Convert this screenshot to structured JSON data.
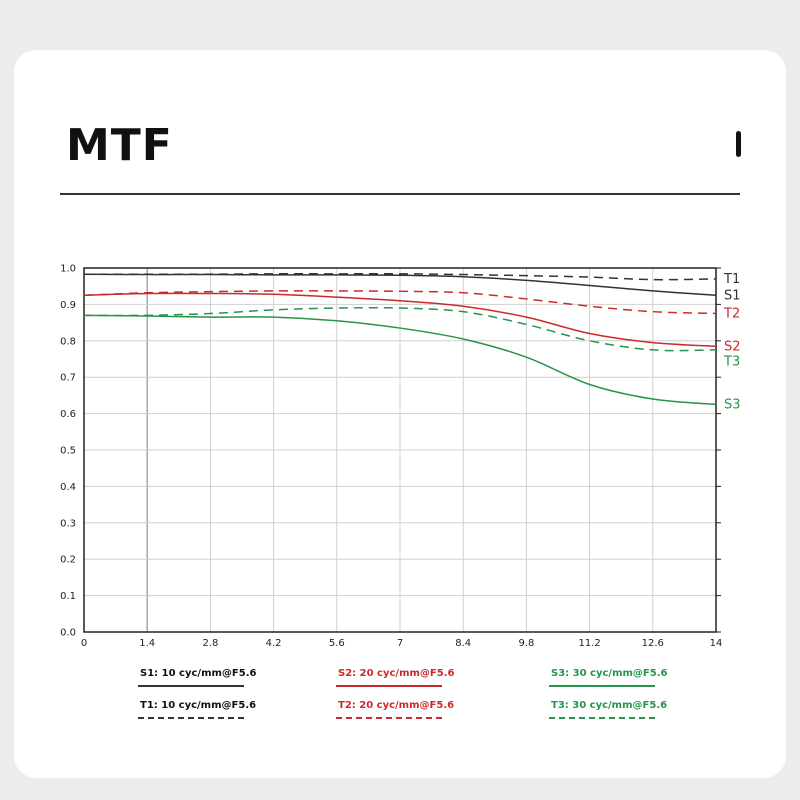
{
  "header": {
    "title": "MTF"
  },
  "colors": {
    "S1": "#333333",
    "T1": "#333333",
    "S2": "#cc2a2a",
    "T2": "#cc2a2a",
    "S3": "#27944a",
    "T3": "#27944a"
  },
  "chart_data": {
    "type": "line",
    "title": "",
    "xlabel": "",
    "ylabel": "",
    "xlim": [
      0,
      14
    ],
    "ylim": [
      0,
      1
    ],
    "xticks": [
      "0",
      "1.4",
      "2.8",
      "4.2",
      "5.6",
      "7",
      "8.4",
      "9.8",
      "11.2",
      "12.6",
      "14"
    ],
    "yticks": [
      "0.0",
      "0.1",
      "0.2",
      "0.3",
      "0.4",
      "0.5",
      "0.6",
      "0.7",
      "0.8",
      "0.9",
      "1.0"
    ],
    "grid": true,
    "legend_position": "bottom",
    "series": [
      {
        "name": "S1",
        "legend": "S1: 10 cyc/mm@F5.6",
        "dash": "solid",
        "x": [
          0,
          1.4,
          2.8,
          4.2,
          5.6,
          7,
          8.4,
          9.8,
          11.2,
          12.6,
          14
        ],
        "y": [
          0.983,
          0.982,
          0.982,
          0.981,
          0.981,
          0.98,
          0.976,
          0.966,
          0.952,
          0.937,
          0.925
        ]
      },
      {
        "name": "T1",
        "legend": "T1: 10 cyc/mm@F5.6",
        "dash": "dashed",
        "x": [
          0,
          1.4,
          2.8,
          4.2,
          5.6,
          7,
          8.4,
          9.8,
          11.2,
          12.6,
          14
        ],
        "y": [
          0.983,
          0.983,
          0.983,
          0.984,
          0.984,
          0.984,
          0.982,
          0.979,
          0.975,
          0.968,
          0.97
        ]
      },
      {
        "name": "S2",
        "legend": "S2: 20 cyc/mm@F5.6",
        "dash": "solid",
        "x": [
          0,
          1.4,
          2.8,
          4.2,
          5.6,
          7,
          8.4,
          9.8,
          11.2,
          12.6,
          14
        ],
        "y": [
          0.925,
          0.93,
          0.93,
          0.928,
          0.92,
          0.91,
          0.895,
          0.865,
          0.82,
          0.795,
          0.785
        ]
      },
      {
        "name": "T2",
        "legend": "T2: 20 cyc/mm@F5.6",
        "dash": "dashed",
        "x": [
          0,
          1.4,
          2.8,
          4.2,
          5.6,
          7,
          8.4,
          9.8,
          11.2,
          12.6,
          14
        ],
        "y": [
          0.925,
          0.932,
          0.935,
          0.937,
          0.937,
          0.936,
          0.932,
          0.915,
          0.895,
          0.88,
          0.875
        ]
      },
      {
        "name": "S3",
        "legend": "S3: 30 cyc/mm@F5.6",
        "dash": "solid",
        "x": [
          0,
          1.4,
          2.8,
          4.2,
          5.6,
          7,
          8.4,
          9.8,
          11.2,
          12.6,
          14
        ],
        "y": [
          0.87,
          0.868,
          0.865,
          0.865,
          0.855,
          0.835,
          0.805,
          0.755,
          0.68,
          0.64,
          0.625
        ]
      },
      {
        "name": "T3",
        "legend": "T3: 30 cyc/mm@F5.6",
        "dash": "dashed",
        "x": [
          0,
          1.4,
          2.8,
          4.2,
          5.6,
          7,
          8.4,
          9.8,
          11.2,
          12.6,
          14
        ],
        "y": [
          0.87,
          0.87,
          0.875,
          0.885,
          0.89,
          0.89,
          0.88,
          0.845,
          0.8,
          0.775,
          0.775
        ]
      }
    ]
  }
}
